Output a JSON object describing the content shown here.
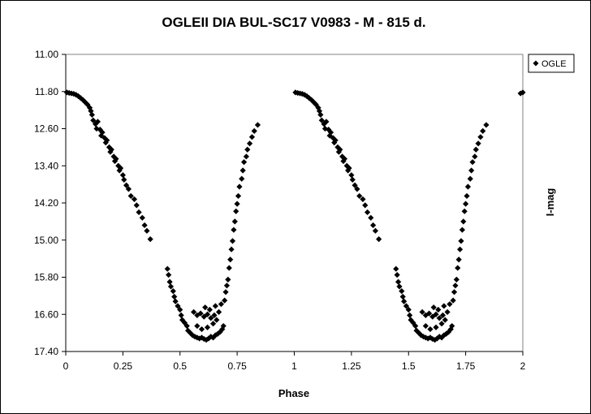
{
  "chart_data": {
    "type": "scatter",
    "title": "OGLEII DIA BUL-SC17  V0983 - M - 815 d.",
    "xlabel": "Phase",
    "ylabel": "I-mag",
    "xlim": [
      0,
      2
    ],
    "ylim": [
      11.0,
      17.4
    ],
    "y_inverted": true,
    "x_ticks": [
      "0",
      "0.25",
      "0.5",
      "0.75",
      "1",
      "1.25",
      "1.5",
      "1.75",
      "2"
    ],
    "y_ticks": [
      "11.00",
      "11.80",
      "12.60",
      "13.40",
      "14.20",
      "15.00",
      "15.80",
      "16.60",
      "17.40"
    ],
    "grid": false,
    "legend": {
      "position": "top-right",
      "entries": [
        "OGLE"
      ]
    },
    "series": [
      {
        "name": "OGLE",
        "marker": "diamond",
        "color": "#000000",
        "points": [
          [
            0.005,
            11.82
          ],
          [
            0.015,
            11.83
          ],
          [
            0.025,
            11.84
          ],
          [
            0.035,
            11.85
          ],
          [
            0.045,
            11.87
          ],
          [
            0.055,
            11.9
          ],
          [
            0.065,
            11.94
          ],
          [
            0.075,
            11.98
          ],
          [
            0.085,
            12.03
          ],
          [
            0.095,
            12.08
          ],
          [
            0.105,
            12.15
          ],
          [
            0.11,
            12.22
          ],
          [
            0.115,
            12.3
          ],
          [
            0.12,
            12.42
          ],
          [
            0.13,
            12.5
          ],
          [
            0.135,
            12.6
          ],
          [
            0.14,
            12.45
          ],
          [
            0.15,
            12.62
          ],
          [
            0.155,
            12.75
          ],
          [
            0.16,
            12.68
          ],
          [
            0.17,
            12.8
          ],
          [
            0.175,
            12.9
          ],
          [
            0.18,
            12.85
          ],
          [
            0.19,
            13.0
          ],
          [
            0.195,
            13.1
          ],
          [
            0.2,
            13.05
          ],
          [
            0.21,
            13.2
          ],
          [
            0.215,
            13.3
          ],
          [
            0.22,
            13.25
          ],
          [
            0.23,
            13.4
          ],
          [
            0.235,
            13.5
          ],
          [
            0.24,
            13.45
          ],
          [
            0.25,
            13.6
          ],
          [
            0.255,
            13.7
          ],
          [
            0.265,
            13.82
          ],
          [
            0.275,
            13.9
          ],
          [
            0.285,
            14.05
          ],
          [
            0.3,
            14.12
          ],
          [
            0.31,
            14.25
          ],
          [
            0.32,
            14.4
          ],
          [
            0.335,
            14.52
          ],
          [
            0.345,
            14.68
          ],
          [
            0.355,
            14.8
          ],
          [
            0.37,
            14.98
          ],
          [
            0.445,
            15.62
          ],
          [
            0.45,
            15.75
          ],
          [
            0.455,
            15.9
          ],
          [
            0.46,
            16.0
          ],
          [
            0.47,
            16.1
          ],
          [
            0.475,
            16.22
          ],
          [
            0.48,
            16.32
          ],
          [
            0.49,
            16.42
          ],
          [
            0.5,
            16.5
          ],
          [
            0.505,
            16.62
          ],
          [
            0.51,
            16.72
          ],
          [
            0.52,
            16.78
          ],
          [
            0.53,
            16.85
          ],
          [
            0.535,
            16.95
          ],
          [
            0.545,
            17.0
          ],
          [
            0.555,
            17.05
          ],
          [
            0.565,
            17.08
          ],
          [
            0.575,
            17.1
          ],
          [
            0.585,
            17.12
          ],
          [
            0.595,
            17.1
          ],
          [
            0.605,
            17.13
          ],
          [
            0.615,
            17.15
          ],
          [
            0.625,
            17.12
          ],
          [
            0.635,
            17.08
          ],
          [
            0.645,
            17.1
          ],
          [
            0.655,
            17.05
          ],
          [
            0.665,
            17.02
          ],
          [
            0.675,
            16.98
          ],
          [
            0.685,
            16.92
          ],
          [
            0.69,
            16.85
          ],
          [
            0.56,
            16.55
          ],
          [
            0.575,
            16.62
          ],
          [
            0.59,
            16.58
          ],
          [
            0.605,
            16.65
          ],
          [
            0.62,
            16.6
          ],
          [
            0.635,
            16.68
          ],
          [
            0.65,
            16.62
          ],
          [
            0.575,
            16.85
          ],
          [
            0.595,
            16.92
          ],
          [
            0.62,
            16.88
          ],
          [
            0.645,
            16.8
          ],
          [
            0.66,
            16.72
          ],
          [
            0.61,
            16.45
          ],
          [
            0.63,
            16.5
          ],
          [
            0.655,
            16.42
          ],
          [
            0.67,
            16.55
          ],
          [
            0.68,
            16.38
          ],
          [
            0.695,
            16.3
          ],
          [
            0.7,
            16.12
          ],
          [
            0.705,
            15.98
          ],
          [
            0.71,
            15.85
          ],
          [
            0.715,
            15.6
          ],
          [
            0.72,
            15.42
          ],
          [
            0.725,
            15.2
          ],
          [
            0.73,
            15.02
          ],
          [
            0.735,
            14.78
          ],
          [
            0.74,
            14.6
          ],
          [
            0.745,
            14.38
          ],
          [
            0.75,
            14.22
          ],
          [
            0.755,
            14.05
          ],
          [
            0.76,
            13.85
          ],
          [
            0.77,
            13.68
          ],
          [
            0.775,
            13.5
          ],
          [
            0.78,
            13.32
          ],
          [
            0.79,
            13.2
          ],
          [
            0.795,
            13.05
          ],
          [
            0.805,
            12.92
          ],
          [
            0.815,
            12.78
          ],
          [
            0.825,
            12.65
          ],
          [
            0.84,
            12.52
          ],
          [
            1.005,
            11.82
          ],
          [
            1.015,
            11.83
          ],
          [
            1.025,
            11.84
          ],
          [
            1.035,
            11.85
          ],
          [
            1.045,
            11.87
          ],
          [
            1.055,
            11.9
          ],
          [
            1.065,
            11.94
          ],
          [
            1.075,
            11.98
          ],
          [
            1.085,
            12.03
          ],
          [
            1.095,
            12.08
          ],
          [
            1.105,
            12.15
          ],
          [
            1.11,
            12.22
          ],
          [
            1.115,
            12.3
          ],
          [
            1.12,
            12.42
          ],
          [
            1.13,
            12.5
          ],
          [
            1.135,
            12.6
          ],
          [
            1.14,
            12.45
          ],
          [
            1.15,
            12.62
          ],
          [
            1.155,
            12.75
          ],
          [
            1.16,
            12.68
          ],
          [
            1.17,
            12.8
          ],
          [
            1.175,
            12.9
          ],
          [
            1.18,
            12.85
          ],
          [
            1.19,
            13.0
          ],
          [
            1.195,
            13.1
          ],
          [
            1.2,
            13.05
          ],
          [
            1.21,
            13.2
          ],
          [
            1.215,
            13.3
          ],
          [
            1.22,
            13.25
          ],
          [
            1.23,
            13.4
          ],
          [
            1.235,
            13.5
          ],
          [
            1.24,
            13.45
          ],
          [
            1.25,
            13.6
          ],
          [
            1.255,
            13.7
          ],
          [
            1.265,
            13.82
          ],
          [
            1.275,
            13.9
          ],
          [
            1.285,
            14.05
          ],
          [
            1.3,
            14.12
          ],
          [
            1.31,
            14.25
          ],
          [
            1.32,
            14.4
          ],
          [
            1.335,
            14.52
          ],
          [
            1.345,
            14.68
          ],
          [
            1.355,
            14.8
          ],
          [
            1.37,
            14.98
          ],
          [
            1.445,
            15.62
          ],
          [
            1.45,
            15.75
          ],
          [
            1.455,
            15.9
          ],
          [
            1.46,
            16.0
          ],
          [
            1.47,
            16.1
          ],
          [
            1.475,
            16.22
          ],
          [
            1.48,
            16.32
          ],
          [
            1.49,
            16.42
          ],
          [
            1.5,
            16.5
          ],
          [
            1.505,
            16.62
          ],
          [
            1.51,
            16.72
          ],
          [
            1.52,
            16.78
          ],
          [
            1.53,
            16.85
          ],
          [
            1.535,
            16.95
          ],
          [
            1.545,
            17.0
          ],
          [
            1.555,
            17.05
          ],
          [
            1.565,
            17.08
          ],
          [
            1.575,
            17.1
          ],
          [
            1.585,
            17.12
          ],
          [
            1.595,
            17.1
          ],
          [
            1.605,
            17.13
          ],
          [
            1.615,
            17.15
          ],
          [
            1.625,
            17.12
          ],
          [
            1.635,
            17.08
          ],
          [
            1.645,
            17.1
          ],
          [
            1.655,
            17.05
          ],
          [
            1.665,
            17.02
          ],
          [
            1.675,
            16.98
          ],
          [
            1.685,
            16.92
          ],
          [
            1.69,
            16.85
          ],
          [
            1.56,
            16.55
          ],
          [
            1.575,
            16.62
          ],
          [
            1.59,
            16.58
          ],
          [
            1.605,
            16.65
          ],
          [
            1.62,
            16.6
          ],
          [
            1.635,
            16.68
          ],
          [
            1.65,
            16.62
          ],
          [
            1.575,
            16.85
          ],
          [
            1.595,
            16.92
          ],
          [
            1.62,
            16.88
          ],
          [
            1.645,
            16.8
          ],
          [
            1.66,
            16.72
          ],
          [
            1.61,
            16.45
          ],
          [
            1.63,
            16.5
          ],
          [
            1.655,
            16.42
          ],
          [
            1.67,
            16.55
          ],
          [
            1.68,
            16.38
          ],
          [
            1.695,
            16.3
          ],
          [
            1.7,
            16.12
          ],
          [
            1.705,
            15.98
          ],
          [
            1.71,
            15.85
          ],
          [
            1.715,
            15.6
          ],
          [
            1.72,
            15.42
          ],
          [
            1.725,
            15.2
          ],
          [
            1.73,
            15.02
          ],
          [
            1.735,
            14.78
          ],
          [
            1.74,
            14.6
          ],
          [
            1.745,
            14.38
          ],
          [
            1.75,
            14.22
          ],
          [
            1.755,
            14.05
          ],
          [
            1.76,
            13.85
          ],
          [
            1.77,
            13.68
          ],
          [
            1.775,
            13.5
          ],
          [
            1.78,
            13.32
          ],
          [
            1.79,
            13.2
          ],
          [
            1.795,
            13.05
          ],
          [
            1.805,
            12.92
          ],
          [
            1.815,
            12.78
          ],
          [
            1.825,
            12.65
          ],
          [
            1.84,
            12.52
          ],
          [
            1.99,
            11.84
          ],
          [
            2.0,
            11.82
          ]
        ]
      }
    ]
  }
}
